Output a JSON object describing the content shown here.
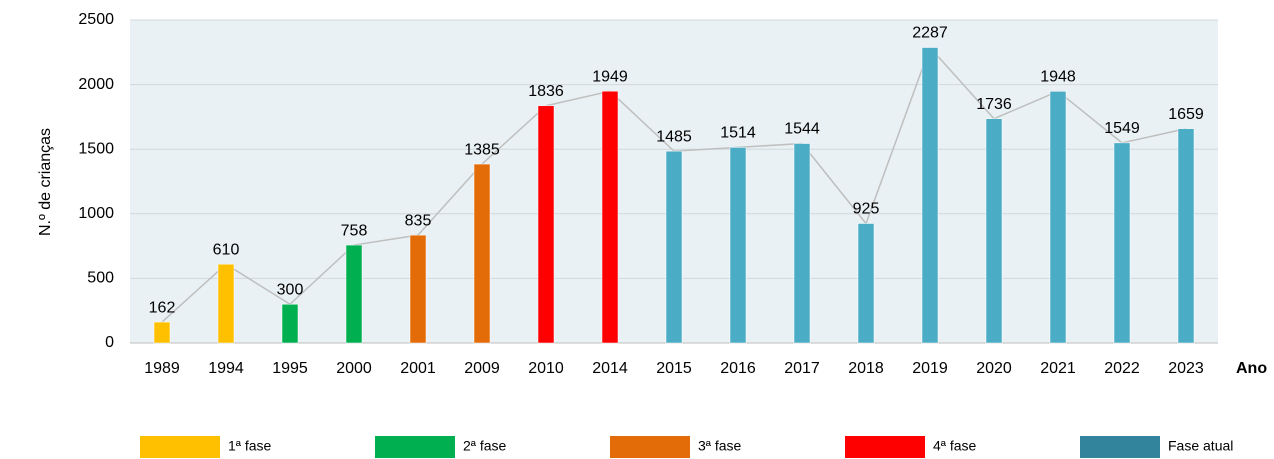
{
  "chart_data": {
    "type": "bar",
    "y_label": "N.º de crianças",
    "x_label": "Ano",
    "categories": [
      "1989",
      "1994",
      "1995",
      "2000",
      "2001",
      "2009",
      "2010",
      "2014",
      "2015",
      "2016",
      "2017",
      "2018",
      "2019",
      "2020",
      "2021",
      "2022",
      "2023"
    ],
    "series": [
      {
        "name": "1ª fase",
        "color": "#ffc000",
        "legend_color": "#ffc000",
        "values": [
          162,
          610,
          null,
          null,
          null,
          null,
          null,
          null,
          null,
          null,
          null,
          null,
          null,
          null,
          null,
          null,
          null
        ]
      },
      {
        "name": "2ª fase",
        "color": "#00b050",
        "legend_color": "#00b050",
        "values": [
          null,
          null,
          300,
          758,
          null,
          null,
          null,
          null,
          null,
          null,
          null,
          null,
          null,
          null,
          null,
          null,
          null
        ]
      },
      {
        "name": "3ª fase",
        "color": "#e36c09",
        "legend_color": "#e36c09",
        "values": [
          null,
          null,
          null,
          null,
          835,
          1385,
          null,
          null,
          null,
          null,
          null,
          null,
          null,
          null,
          null,
          null,
          null
        ]
      },
      {
        "name": "4ª fase",
        "color": "#ff0000",
        "legend_color": "#ff0000",
        "values": [
          null,
          null,
          null,
          null,
          null,
          null,
          1836,
          1949,
          null,
          null,
          null,
          null,
          null,
          null,
          null,
          null,
          null
        ]
      },
      {
        "name": "Fase atual",
        "color": "#4bacc6",
        "legend_color": "#31849b",
        "values": [
          null,
          null,
          null,
          null,
          null,
          null,
          null,
          null,
          1485,
          1514,
          1544,
          925,
          2287,
          1736,
          1948,
          1549,
          1659
        ]
      }
    ],
    "line_color": "#bfbfbf",
    "ylim": [
      0,
      2500
    ],
    "yticks": [
      0,
      500,
      1000,
      1500,
      2000,
      2500
    ],
    "grid": true,
    "legend": "bottom"
  }
}
